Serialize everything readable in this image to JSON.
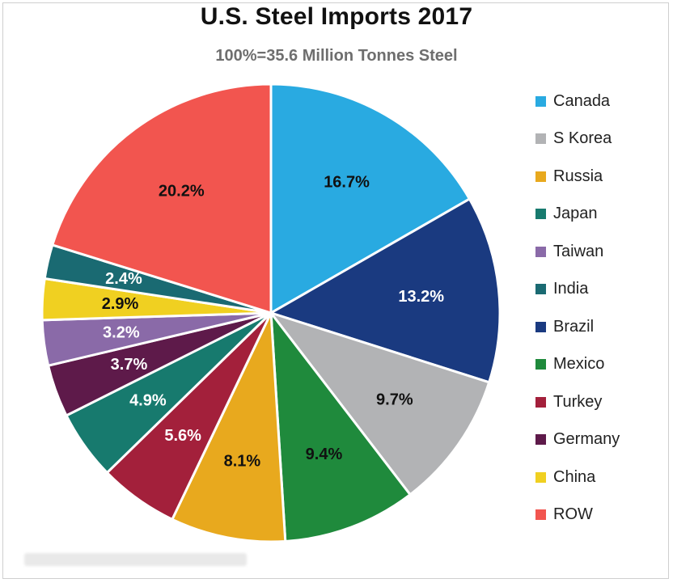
{
  "chart_data": {
    "type": "pie",
    "title": "U.S. Steel Imports 2017",
    "subtitle": "100%=35.6 Million Tonnes Steel",
    "start_angle_deg": 0,
    "direction": "clockwise",
    "legend_position": "right",
    "slices": [
      {
        "name": "Canada",
        "value": 16.7,
        "label": "16.7%",
        "color": "#29aae1",
        "label_color": "#111111"
      },
      {
        "name": "Brazil",
        "value": 13.2,
        "label": "13.2%",
        "color": "#1a3a80",
        "label_color": "#ffffff"
      },
      {
        "name": "S Korea",
        "value": 9.7,
        "label": "9.7%",
        "color": "#b2b3b5",
        "label_color": "#111111"
      },
      {
        "name": "Mexico",
        "value": 9.4,
        "label": "9.4%",
        "color": "#1f8a3c",
        "label_color": "#111111"
      },
      {
        "name": "Russia",
        "value": 8.1,
        "label": "8.1%",
        "color": "#e8a91e",
        "label_color": "#111111"
      },
      {
        "name": "Turkey",
        "value": 5.6,
        "label": "5.6%",
        "color": "#a3203b",
        "label_color": "#ffffff"
      },
      {
        "name": "Japan",
        "value": 4.9,
        "label": "4.9%",
        "color": "#177a6e",
        "label_color": "#ffffff"
      },
      {
        "name": "Germany",
        "value": 3.7,
        "label": "3.7%",
        "color": "#5e1a4a",
        "label_color": "#ffffff"
      },
      {
        "name": "Taiwan",
        "value": 3.2,
        "label": "3.2%",
        "color": "#8a6aa8",
        "label_color": "#ffffff"
      },
      {
        "name": "China",
        "value": 2.9,
        "label": "2.9%",
        "color": "#f0d021",
        "label_color": "#111111"
      },
      {
        "name": "India",
        "value": 2.4,
        "label": "2.4%",
        "color": "#1a6a72",
        "label_color": "#ffffff"
      },
      {
        "name": "ROW",
        "value": 20.2,
        "label": "20.2%",
        "color": "#f2554f",
        "label_color": "#111111"
      }
    ],
    "legend": [
      {
        "name": "Canada",
        "color": "#29aae1"
      },
      {
        "name": "S Korea",
        "color": "#b2b3b5"
      },
      {
        "name": "Russia",
        "color": "#e8a91e"
      },
      {
        "name": "Japan",
        "color": "#177a6e"
      },
      {
        "name": "Taiwan",
        "color": "#8a6aa8"
      },
      {
        "name": "India",
        "color": "#1a6a72"
      },
      {
        "name": "Brazil",
        "color": "#1a3a80"
      },
      {
        "name": "Mexico",
        "color": "#1f8a3c"
      },
      {
        "name": "Turkey",
        "color": "#a3203b"
      },
      {
        "name": "Germany",
        "color": "#5e1a4a"
      },
      {
        "name": "China",
        "color": "#f0d021"
      },
      {
        "name": "ROW",
        "color": "#f2554f"
      }
    ]
  }
}
